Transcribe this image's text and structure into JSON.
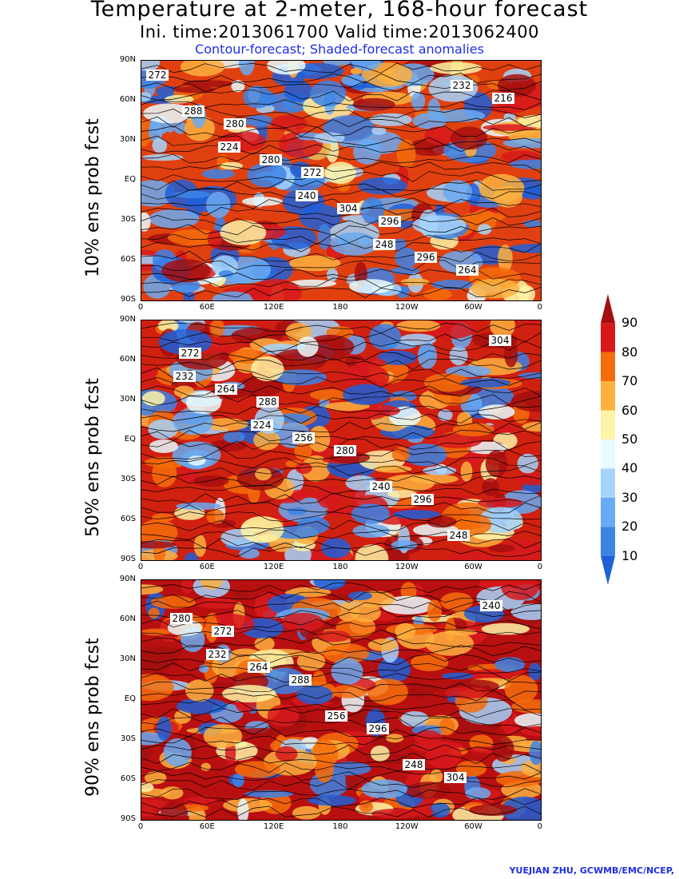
{
  "title": {
    "main": "Temperature at 2-meter, 168-hour forecast",
    "times": "Ini. time:2013061700    Valid time:2013062400",
    "subtitle": "Contour-forecast; Shaded-forecast anomalies"
  },
  "lat_labels": [
    "90N",
    "60N",
    "30N",
    "EQ",
    "30S",
    "60S",
    "90S"
  ],
  "lon_labels": [
    "0",
    "60E",
    "120E",
    "180",
    "120W",
    "60W",
    "0"
  ],
  "panels": [
    {
      "label": "10% ens prob fcst",
      "contours": [
        "272",
        "280",
        "272",
        "296",
        "264",
        "288",
        "280",
        "304",
        "296",
        "216",
        "224",
        "240",
        "248",
        "232"
      ]
    },
    {
      "label": "50% ens prob fcst",
      "contours": [
        "272",
        "288",
        "280",
        "296",
        "304",
        "264",
        "256",
        "240",
        "248",
        "232",
        "224"
      ]
    },
    {
      "label": "90% ens prob fcst",
      "contours": [
        "272",
        "288",
        "296",
        "304",
        "280",
        "264",
        "256",
        "248",
        "240",
        "232"
      ]
    }
  ],
  "colorbar": {
    "labels": [
      "90",
      "80",
      "70",
      "60",
      "50",
      "40",
      "30",
      "20",
      "10"
    ],
    "colors": [
      "#a50f0f",
      "#d7191c",
      "#f46d0a",
      "#fdb040",
      "#fef3a6",
      "#e9fbff",
      "#a5d4fb",
      "#6aaaf2",
      "#3c84e6",
      "#1f5fd8"
    ]
  },
  "credit": "YUEJIAN ZHU, GCWMB/EMC/NCEP,"
}
